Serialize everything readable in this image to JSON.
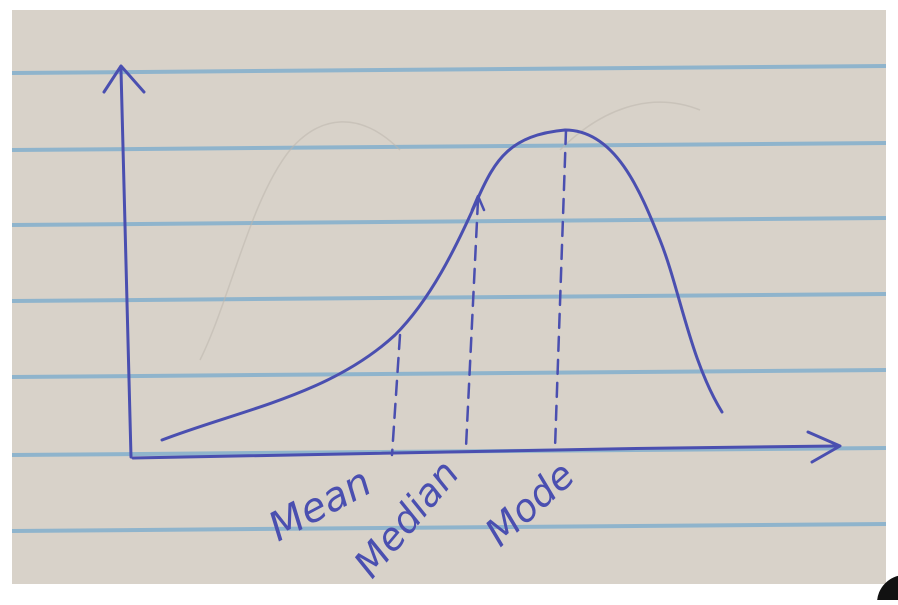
{
  "diagram": {
    "type": "skewed-distribution-sketch",
    "labels": {
      "mean": "Mean",
      "median": "Median",
      "mode": "Mode"
    },
    "colors": {
      "paper": "#d8d2c9",
      "rule_line": "#8fb4cc",
      "ink": "#4a4fb0",
      "faint_pencil": "#bdb6ad"
    }
  }
}
